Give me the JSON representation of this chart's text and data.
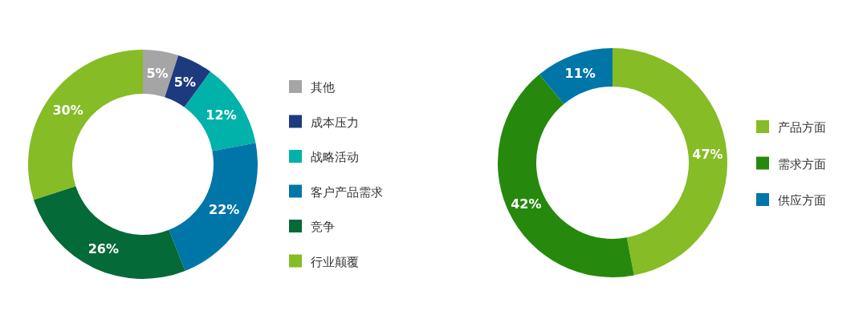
{
  "chart_data": [
    {
      "type": "donut",
      "categories": [
        "其他",
        "成本压力",
        "战略活动",
        "客户产品需求",
        "竞争",
        "行业颠覆"
      ],
      "values": [
        5,
        5,
        12,
        22,
        26,
        30
      ],
      "colors": [
        "#a5a5a5",
        "#1e3a7f",
        "#00b2a9",
        "#0076a8",
        "#046a38",
        "#86bc25"
      ],
      "value_labels": [
        "5%",
        "5%",
        "12%",
        "22%",
        "26%",
        "30%"
      ],
      "legend": "right"
    },
    {
      "type": "donut",
      "categories": [
        "产品方面",
        "需求方面",
        "供应方面"
      ],
      "values": [
        47,
        42,
        11
      ],
      "colors": [
        "#86bc25",
        "#26890d",
        "#0076a8"
      ],
      "value_labels": [
        "47%",
        "42%",
        "11%"
      ],
      "legend": "right"
    }
  ]
}
